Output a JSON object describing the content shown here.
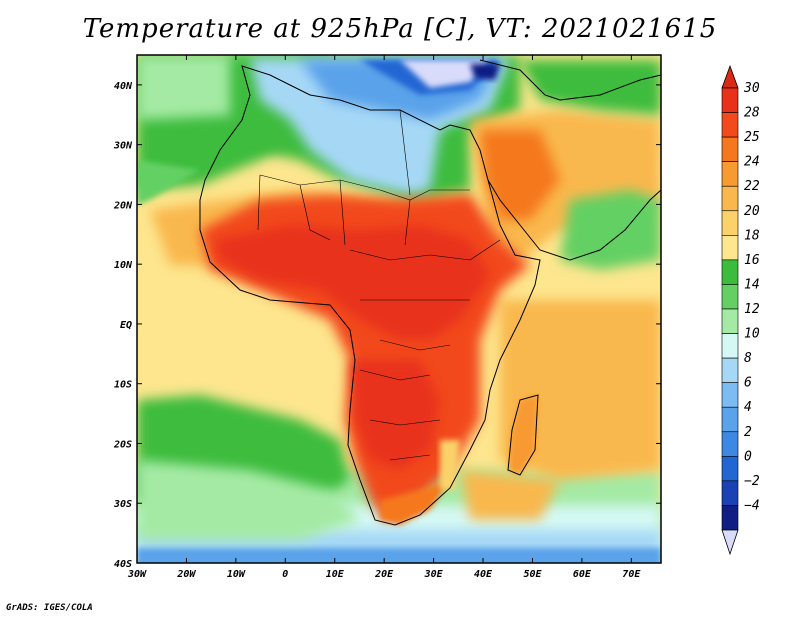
{
  "title": "Temperature at 925hPa [C], VT: 2021021615",
  "credit": "GrADS: IGES/COLA",
  "map": {
    "region": "Africa",
    "lon_range": [
      -30,
      76
    ],
    "lat_range": [
      -40,
      45
    ],
    "lon_ticks": [
      {
        "value": -30,
        "label": "30W"
      },
      {
        "value": -20,
        "label": "20W"
      },
      {
        "value": -10,
        "label": "10W"
      },
      {
        "value": 0,
        "label": "0"
      },
      {
        "value": 10,
        "label": "10E"
      },
      {
        "value": 20,
        "label": "20E"
      },
      {
        "value": 30,
        "label": "30E"
      },
      {
        "value": 40,
        "label": "40E"
      },
      {
        "value": 50,
        "label": "50E"
      },
      {
        "value": 60,
        "label": "60E"
      },
      {
        "value": 70,
        "label": "70E"
      }
    ],
    "lat_ticks": [
      {
        "value": 40,
        "label": "40N"
      },
      {
        "value": 30,
        "label": "30N"
      },
      {
        "value": 20,
        "label": "20N"
      },
      {
        "value": 10,
        "label": "10N"
      },
      {
        "value": 0,
        "label": "EQ"
      },
      {
        "value": -10,
        "label": "10S"
      },
      {
        "value": -20,
        "label": "20S"
      },
      {
        "value": -30,
        "label": "30S"
      },
      {
        "value": -40,
        "label": "40S"
      }
    ]
  },
  "colorbar": {
    "levels": [
      {
        "label": "30",
        "color": "#e8301a"
      },
      {
        "label": "28",
        "color": "#f24a1c"
      },
      {
        "label": "25",
        "color": "#f5781e"
      },
      {
        "label": "24",
        "color": "#f89a32"
      },
      {
        "label": "22",
        "color": "#f9b84d"
      },
      {
        "label": "20",
        "color": "#fbd26a"
      },
      {
        "label": "18",
        "color": "#fde68e"
      },
      {
        "label": "16",
        "color": "#3cbc3c"
      },
      {
        "label": "14",
        "color": "#64d064"
      },
      {
        "label": "12",
        "color": "#a4eaa4"
      },
      {
        "label": "10",
        "color": "#d4f8f4"
      },
      {
        "label": "8",
        "color": "#a6d8f6"
      },
      {
        "label": "6",
        "color": "#7cbcf2"
      },
      {
        "label": "4",
        "color": "#5aa2ea"
      },
      {
        "label": "2",
        "color": "#3c88e2"
      },
      {
        "label": "0",
        "color": "#2266d4"
      },
      {
        "label": "−2",
        "color": "#1a42b4"
      },
      {
        "label": "−4",
        "color": "#101e84"
      }
    ],
    "top_color": "#d82a14",
    "bottom_color": "#d8dcfa"
  }
}
